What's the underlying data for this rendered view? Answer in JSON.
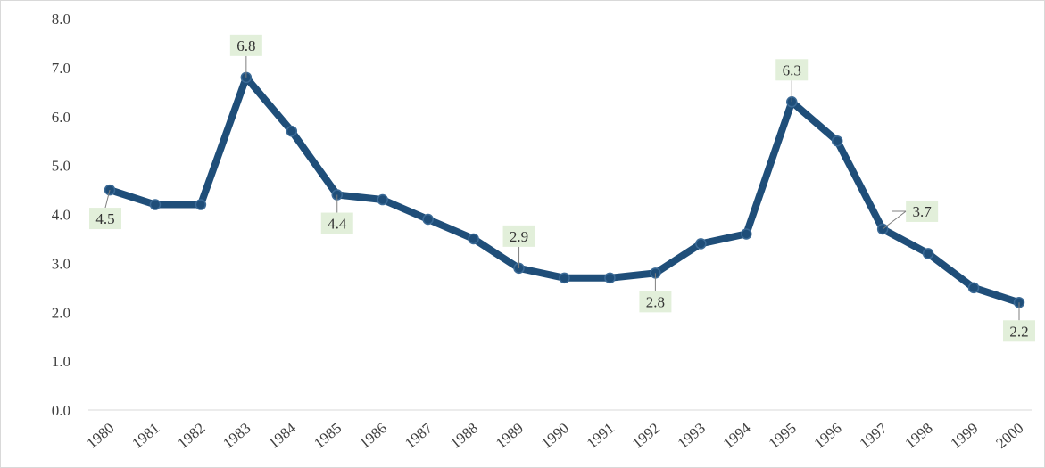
{
  "chart_data": {
    "type": "line",
    "title": "",
    "xlabel": "",
    "ylabel": "",
    "categories": [
      "1980",
      "1981",
      "1982",
      "1983",
      "1984",
      "1985",
      "1986",
      "1987",
      "1988",
      "1989",
      "1990",
      "1991",
      "1992",
      "1993",
      "1994",
      "1995",
      "1996",
      "1997",
      "1998",
      "1999",
      "2000"
    ],
    "series": [
      {
        "values": [
          4.5,
          4.2,
          4.2,
          6.8,
          5.7,
          4.4,
          4.3,
          3.9,
          3.5,
          2.9,
          2.7,
          2.7,
          2.8,
          3.4,
          3.6,
          6.3,
          5.5,
          3.7,
          3.2,
          2.5,
          2.2
        ],
        "color": "#1f4e79"
      }
    ],
    "ylim": [
      0,
      8
    ],
    "yticks": [
      "0.0",
      "1.0",
      "2.0",
      "3.0",
      "4.0",
      "5.0",
      "6.0",
      "7.0",
      "8.0"
    ],
    "gridlines": false,
    "legend": "none",
    "data_labels": [
      {
        "category": "1980",
        "text": "4.5",
        "placement": "below-left"
      },
      {
        "category": "1983",
        "text": "6.8",
        "placement": "above"
      },
      {
        "category": "1985",
        "text": "4.4",
        "placement": "below"
      },
      {
        "category": "1989",
        "text": "2.9",
        "placement": "above"
      },
      {
        "category": "1992",
        "text": "2.8",
        "placement": "below"
      },
      {
        "category": "1995",
        "text": "6.3",
        "placement": "above"
      },
      {
        "category": "1997",
        "text": "3.7",
        "placement": "right"
      },
      {
        "category": "2000",
        "text": "2.2",
        "placement": "below"
      }
    ],
    "label_background": "#e2efda"
  }
}
